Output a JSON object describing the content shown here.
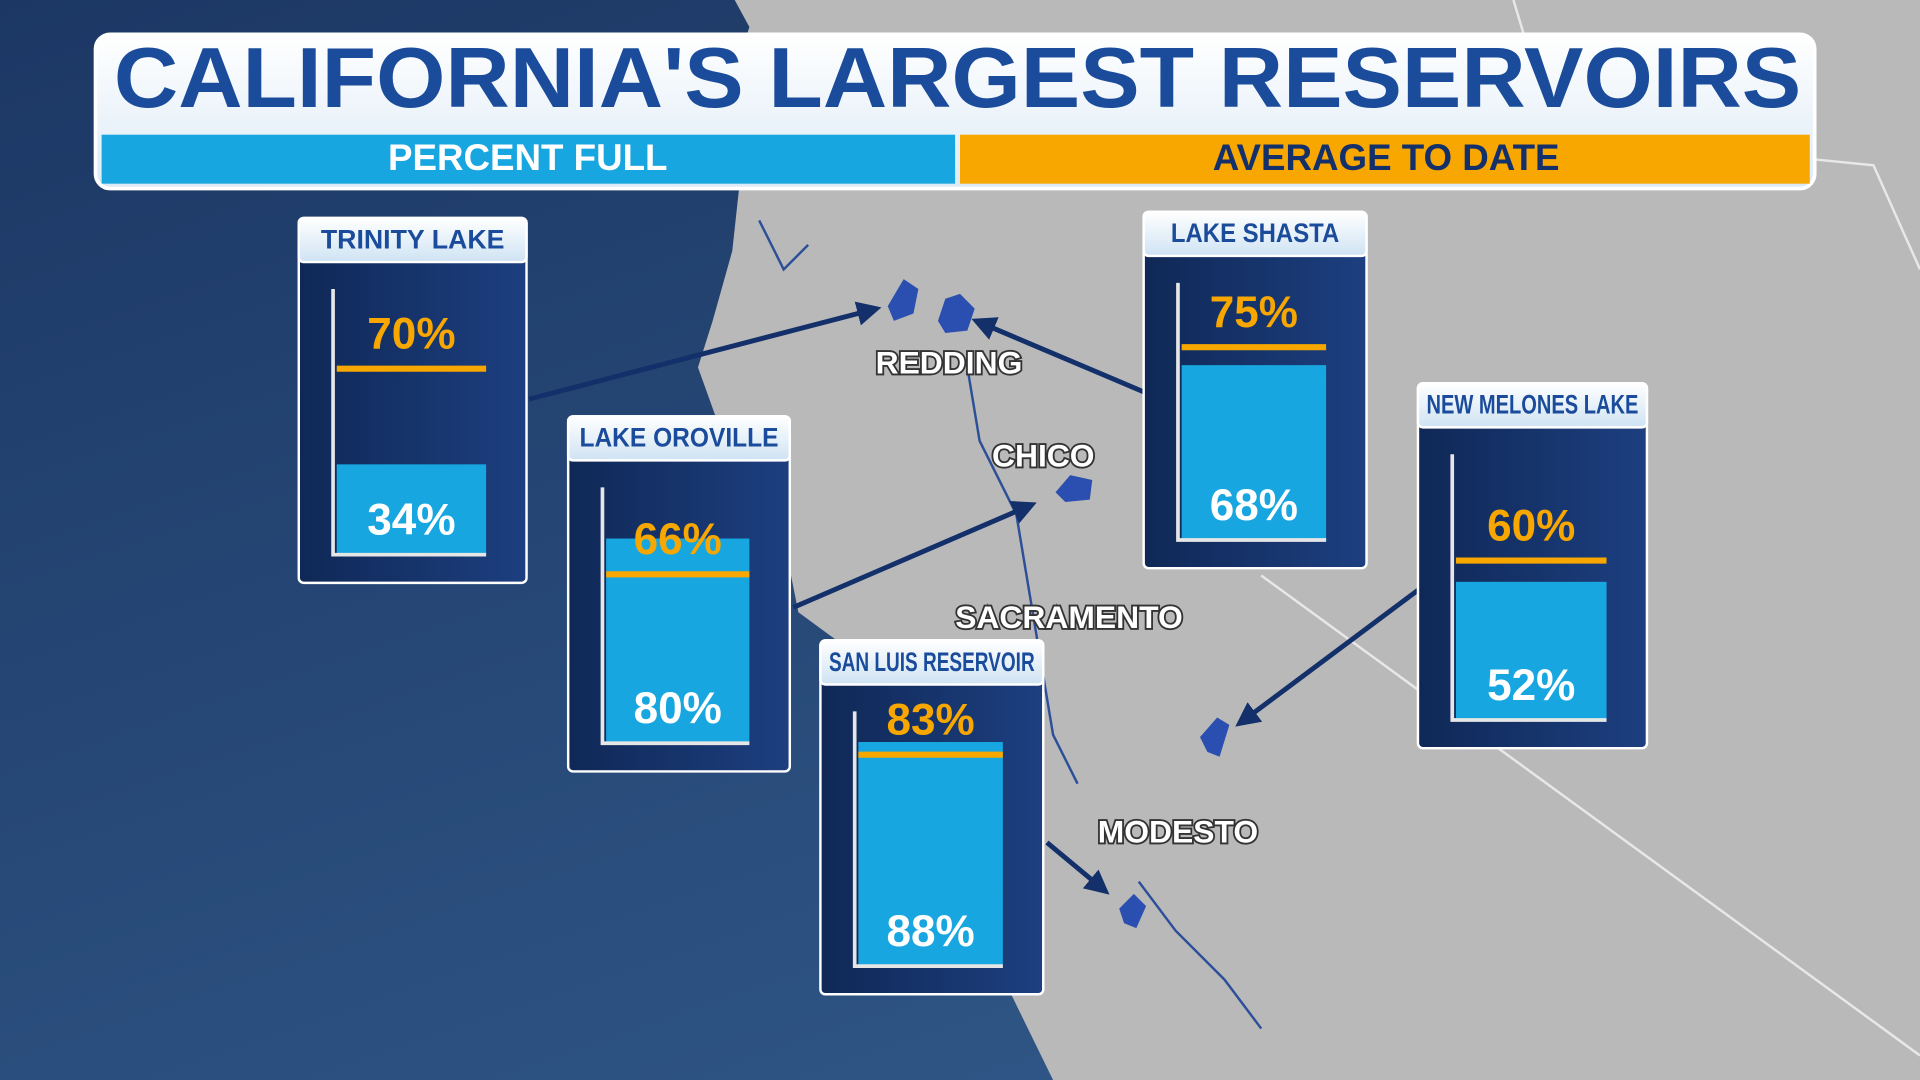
{
  "title": "CALIFORNIA'S LARGEST RESERVOIRS",
  "legend": {
    "percent_full": "PERCENT FULL",
    "average_to_date": "AVERAGE TO DATE"
  },
  "gauge_range": [
    0,
    100
  ],
  "reservoirs": [
    {
      "name": "TRINITY LAKE",
      "percent_full": 34,
      "percent_full_label": "34%",
      "average_to_date": 70,
      "average_to_date_label": "70%"
    },
    {
      "name": "LAKE SHASTA",
      "percent_full": 68,
      "percent_full_label": "68%",
      "average_to_date": 75,
      "average_to_date_label": "75%"
    },
    {
      "name": "LAKE OROVILLE",
      "percent_full": 80,
      "percent_full_label": "80%",
      "average_to_date": 66,
      "average_to_date_label": "66%"
    },
    {
      "name": "NEW MELONES LAKE",
      "percent_full": 52,
      "percent_full_label": "52%",
      "average_to_date": 60,
      "average_to_date_label": "60%"
    },
    {
      "name": "SAN LUIS RESERVOIR",
      "percent_full": 88,
      "percent_full_label": "88%",
      "average_to_date": 83,
      "average_to_date_label": "83%"
    }
  ],
  "cities": [
    "REDDING",
    "CHICO",
    "SACRAMENTO",
    "MODESTO"
  ]
}
